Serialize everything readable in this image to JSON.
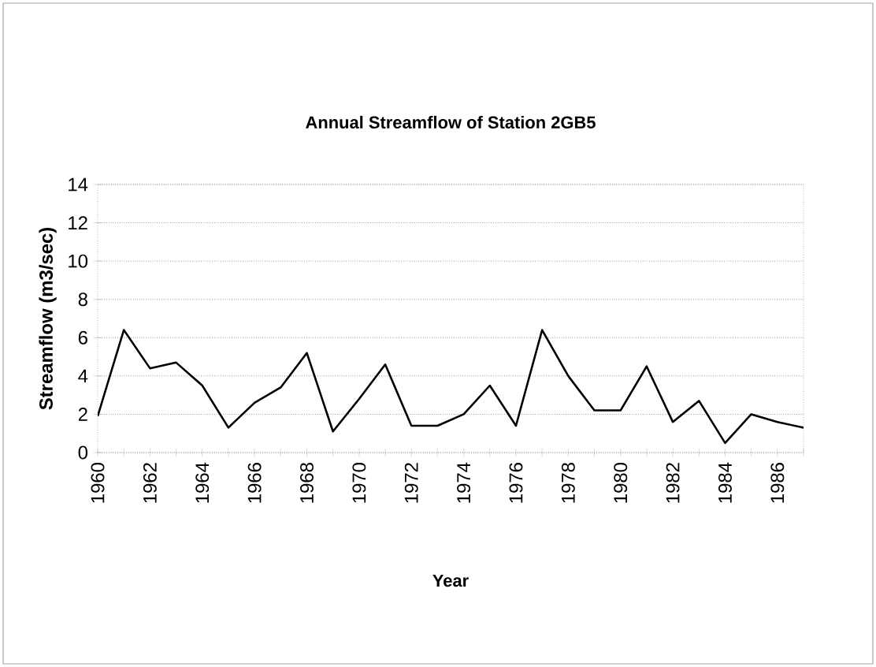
{
  "chart_data": {
    "type": "line",
    "title": "Annual Streamflow of Station 2GB5",
    "xlabel": "Year",
    "ylabel": "Streamflow (m3/sec)",
    "x": [
      1960,
      1961,
      1962,
      1963,
      1964,
      1965,
      1966,
      1967,
      1968,
      1969,
      1970,
      1971,
      1972,
      1973,
      1974,
      1975,
      1976,
      1977,
      1978,
      1979,
      1980,
      1981,
      1982,
      1983,
      1984,
      1985,
      1986,
      1987
    ],
    "series": [
      {
        "color": "#000000",
        "values": [
          1.9,
          6.4,
          4.4,
          4.7,
          3.5,
          1.3,
          2.6,
          3.4,
          5.2,
          1.1,
          2.8,
          4.6,
          1.4,
          1.4,
          2.0,
          3.5,
          1.4,
          6.4,
          4.0,
          2.2,
          2.2,
          4.5,
          1.6,
          2.7,
          0.5,
          2.0,
          1.6,
          1.3
        ]
      }
    ],
    "xlim": [
      1960,
      1987
    ],
    "xticks": [
      1960,
      {
        "value": 1961,
        "label": null
      },
      1962,
      {
        "value": 1963,
        "label": null
      },
      1964,
      {
        "value": 1965,
        "label": null
      },
      1966,
      {
        "value": 1967,
        "label": null
      },
      1968,
      {
        "value": 1969,
        "label": null
      },
      1970,
      {
        "value": 1971,
        "label": null
      },
      1972,
      {
        "value": 1973,
        "label": null
      },
      1974,
      {
        "value": 1975,
        "label": null
      },
      1976,
      {
        "value": 1977,
        "label": null
      },
      1978,
      {
        "value": 1979,
        "label": null
      },
      1980,
      {
        "value": 1981,
        "label": null
      },
      1982,
      {
        "value": 1983,
        "label": null
      },
      1984,
      {
        "value": 1985,
        "label": null
      },
      1986,
      {
        "value": 1987,
        "label": null
      }
    ],
    "ylim": [
      0,
      14
    ],
    "yticks": [
      0,
      2,
      4,
      6,
      8,
      10,
      12,
      14
    ],
    "grid": "y",
    "marker": "none",
    "line_style": "solid"
  }
}
